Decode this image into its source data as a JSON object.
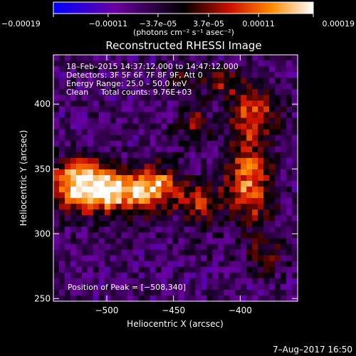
{
  "chart_data": {
    "type": "heatmap",
    "title": "Reconstructed RHESSI Image",
    "xlabel": "Heliocentric X (arcsec)",
    "ylabel": "Heliocentric Y (arcsec)",
    "xlim": [
      -540,
      -357
    ],
    "ylim": [
      248,
      438
    ],
    "xticks": [
      {
        "value": -500,
        "label": "−500"
      },
      {
        "value": -450,
        "label": "−450"
      },
      {
        "value": -400,
        "label": "−400"
      }
    ],
    "yticks": [
      {
        "value": 250,
        "label": "250"
      },
      {
        "value": 300,
        "label": "300"
      },
      {
        "value": 350,
        "label": "350"
      },
      {
        "value": 400,
        "label": "400"
      }
    ],
    "annotations": [
      "18–Feb–2015 14:37:12.000 to 14:47:12.000",
      "Detectors: 3F 5F 6F 7F 8F 9F, Att 0",
      "Energy Range: 25.0 – 50.0 keV",
      "Clean     Total counts: 9.76E+03"
    ],
    "peak_label": "Position of Peak = [−508,340]",
    "peak_position": [
      -508,
      340
    ],
    "colorbar": {
      "range": [
        -0.00019,
        0.00019
      ],
      "ticks": [
        {
          "value": -0.00019,
          "label": "−0.00019"
        },
        {
          "value": -0.00011,
          "label": "−0.00011"
        },
        {
          "value": -3.7e-05,
          "label": "−3.7e–05"
        },
        {
          "value": 3.7e-05,
          "label": "3.7e–05"
        },
        {
          "value": 0.00011,
          "label": "0.00011"
        },
        {
          "value": 0.00019,
          "label": "0.00019"
        }
      ],
      "unit_label": "(photons cm⁻² s⁻¹ asec⁻²)",
      "colors": [
        "#0000ff",
        "#6a00a0",
        "#000000",
        "#cc1000",
        "#ff8a00",
        "#ffffff"
      ]
    },
    "timestamp": "7–Aug–2017 16:50",
    "sources": [
      {
        "x": -520,
        "y": 338,
        "sx": 16,
        "sy": 14,
        "amp": 1.0
      },
      {
        "x": -487,
        "y": 332,
        "sx": 18,
        "sy": 12,
        "amp": 0.78
      },
      {
        "x": -462,
        "y": 338,
        "sx": 12,
        "sy": 11,
        "amp": 0.58
      },
      {
        "x": -430,
        "y": 324,
        "sx": 12,
        "sy": 11,
        "amp": 0.48
      },
      {
        "x": -393,
        "y": 342,
        "sx": 12,
        "sy": 24,
        "amp": 0.72
      },
      {
        "x": -390,
        "y": 395,
        "sx": 12,
        "sy": 13,
        "amp": 0.58
      },
      {
        "x": -414,
        "y": 418,
        "sx": 10,
        "sy": 7,
        "amp": 0.48
      },
      {
        "x": -380,
        "y": 282,
        "sx": 11,
        "sy": 10,
        "amp": 0.28
      },
      {
        "x": -435,
        "y": 385,
        "sx": 9,
        "sy": 10,
        "amp": 0.34
      },
      {
        "x": -445,
        "y": 422,
        "sx": 8,
        "sy": 7,
        "amp": 0.22
      }
    ]
  }
}
